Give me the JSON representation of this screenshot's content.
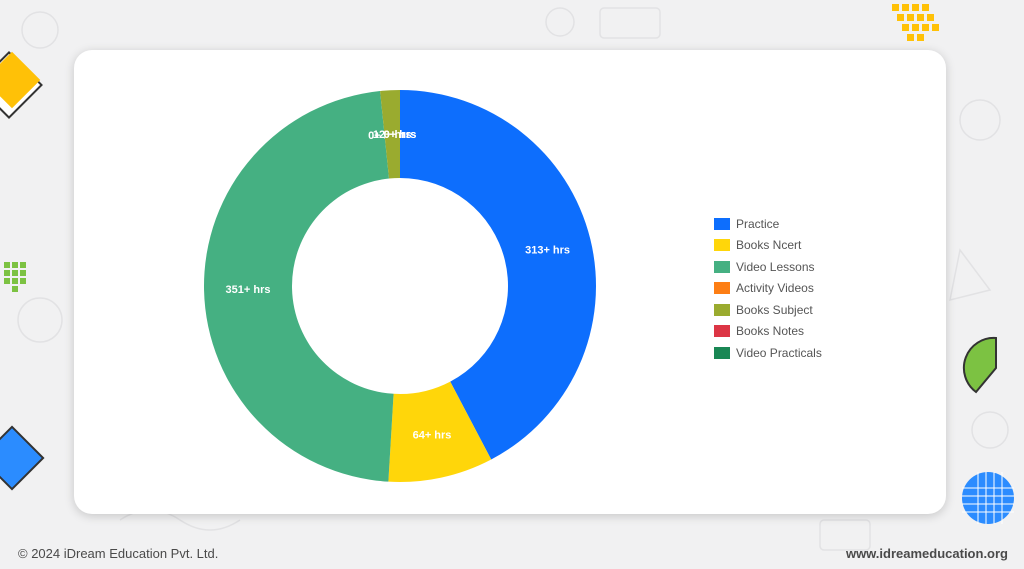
{
  "chart_data": {
    "type": "pie",
    "variant": "donut",
    "categories": [
      "Practice",
      "Books Ncert",
      "Video Lessons",
      "Activity Videos",
      "Books Subject",
      "Books Notes",
      "Video Practicals"
    ],
    "values": [
      313,
      64,
      351,
      0,
      12,
      0,
      0
    ],
    "data_labels": [
      "313+ hrs",
      "64+ hrs",
      "351+ hrs",
      "0+ hrs",
      "12+ hrs",
      "0+ hrs",
      "0+ hrs"
    ],
    "colors": [
      "#0d6efd",
      "#ffd60a",
      "#45b082",
      "#fd7e14",
      "#9aab2f",
      "#dc3545",
      "#198754"
    ],
    "legend_position": "right",
    "title": ""
  },
  "footer": {
    "copyright": "© 2024 iDream Education Pvt. Ltd.",
    "website": "www.idreameducation.org"
  },
  "decor": {
    "accent_colors": [
      "#ffc107",
      "#2b8cff",
      "#7cc242"
    ]
  }
}
